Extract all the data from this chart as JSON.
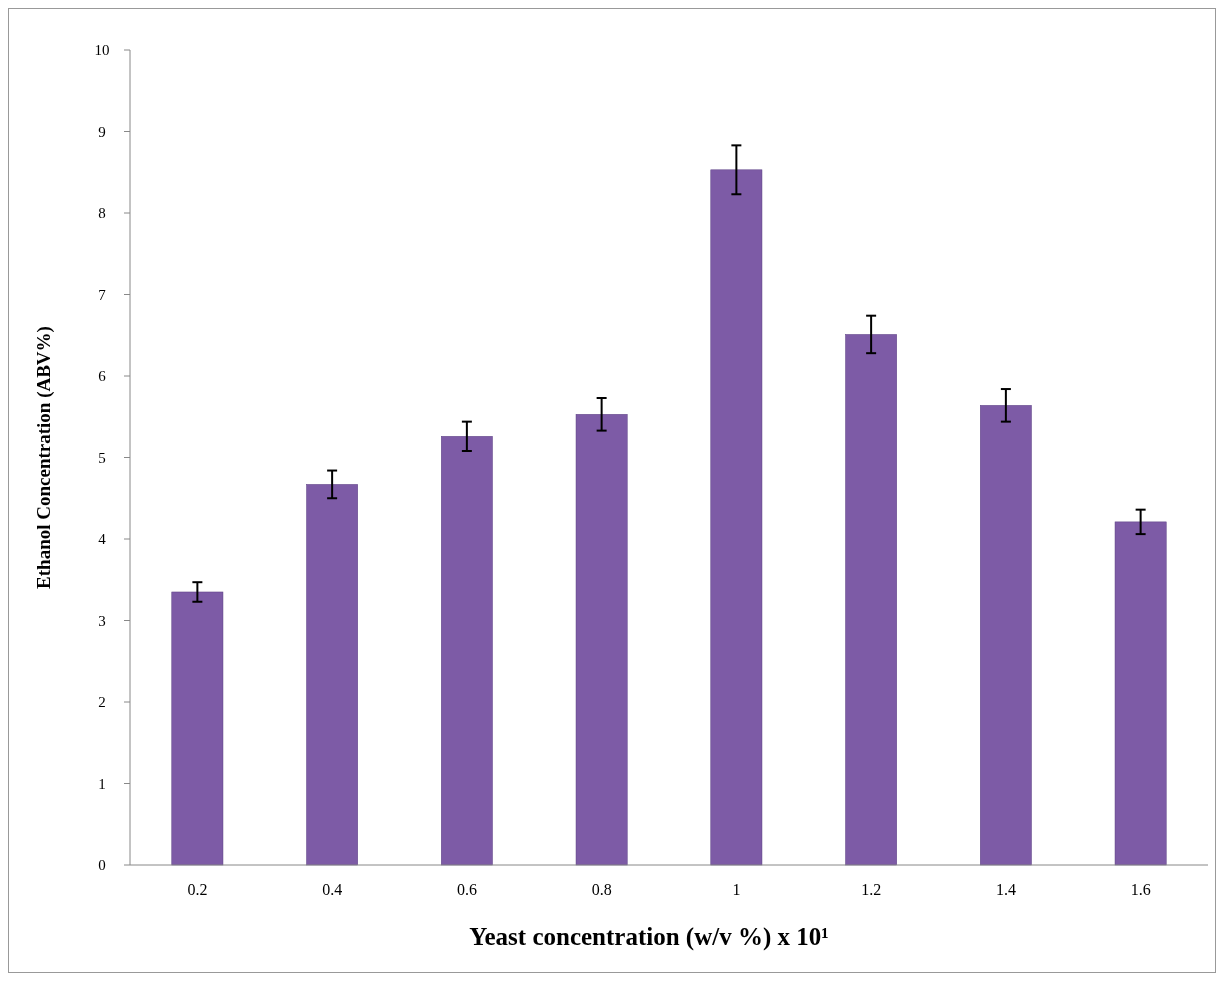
{
  "chart_data": {
    "type": "bar",
    "xlabel": "Yeast concentration (w/v %) x 10¹",
    "ylabel": "Ethanol Concentration (ABV%)",
    "categories": [
      "0.2",
      "0.4",
      "0.6",
      "0.8",
      "1",
      "1.2",
      "1.4",
      "1.6"
    ],
    "values": [
      3.35,
      4.67,
      5.26,
      5.53,
      8.53,
      6.51,
      5.64,
      4.21
    ],
    "errors": [
      0.12,
      0.17,
      0.18,
      0.2,
      0.3,
      0.23,
      0.2,
      0.15
    ],
    "color": "#7d5ba6",
    "ylim": [
      0,
      10
    ],
    "yticks": [
      0,
      1,
      2,
      3,
      4,
      5,
      6,
      7,
      8,
      9,
      10
    ],
    "grid": false
  }
}
